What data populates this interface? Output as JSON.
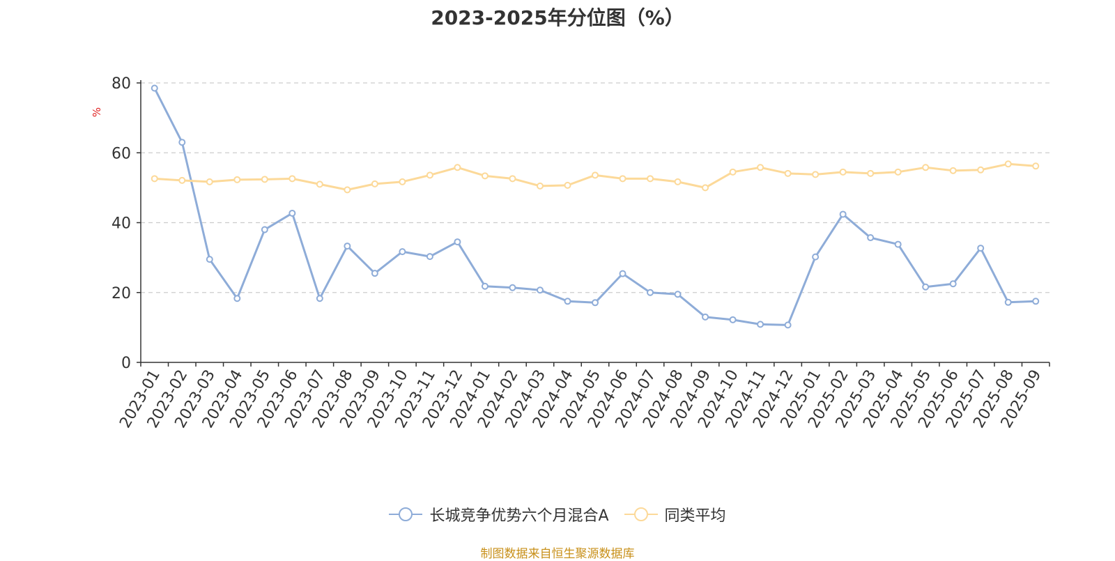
{
  "title": "2023-2025年分位图（%）",
  "unit_label": "%",
  "source": "制图数据来自恒生聚源数据库",
  "chart_data": {
    "type": "line",
    "title": "2023-2025年分位图（%）",
    "ylabel": "%",
    "ylim": [
      0,
      80
    ],
    "yticks": [
      0,
      20,
      40,
      60,
      80
    ],
    "grid": true,
    "legend_position": "bottom",
    "categories": [
      "2023-01",
      "2023-02",
      "2023-03",
      "2023-04",
      "2023-05",
      "2023-06",
      "2023-07",
      "2023-08",
      "2023-09",
      "2023-10",
      "2023-11",
      "2023-12",
      "2024-01",
      "2024-02",
      "2024-03",
      "2024-04",
      "2024-05",
      "2024-06",
      "2024-07",
      "2024-08",
      "2024-09",
      "2024-10",
      "2024-11",
      "2024-12",
      "2025-01",
      "2025-02",
      "2025-03",
      "2025-04",
      "2025-05",
      "2025-06",
      "2025-07",
      "2025-08",
      "2025-09"
    ],
    "series": [
      {
        "name": "长城竞争优势六个月混合A",
        "color": "#8eacd8",
        "values": [
          78.5,
          63,
          29.5,
          18.3,
          38,
          42.7,
          18.3,
          33.3,
          25.5,
          31.7,
          30.3,
          34.5,
          21.8,
          21.4,
          20.7,
          17.5,
          17.1,
          25.4,
          20,
          19.5,
          13,
          12.2,
          10.9,
          10.7,
          30.2,
          42.4,
          35.7,
          33.8,
          21.6,
          22.5,
          32.7,
          17.2,
          17.5
        ]
      },
      {
        "name": "同类平均",
        "color": "#fcd999",
        "values": [
          52.6,
          52.1,
          51.7,
          52.3,
          52.4,
          52.6,
          51,
          49.4,
          51.1,
          51.7,
          53.6,
          55.8,
          53.4,
          52.6,
          50.5,
          50.7,
          53.6,
          52.6,
          52.6,
          51.7,
          50,
          54.5,
          55.8,
          54.1,
          53.8,
          54.5,
          54.1,
          54.5,
          55.8,
          54.9,
          55.1,
          56.8,
          56.2
        ]
      }
    ]
  }
}
